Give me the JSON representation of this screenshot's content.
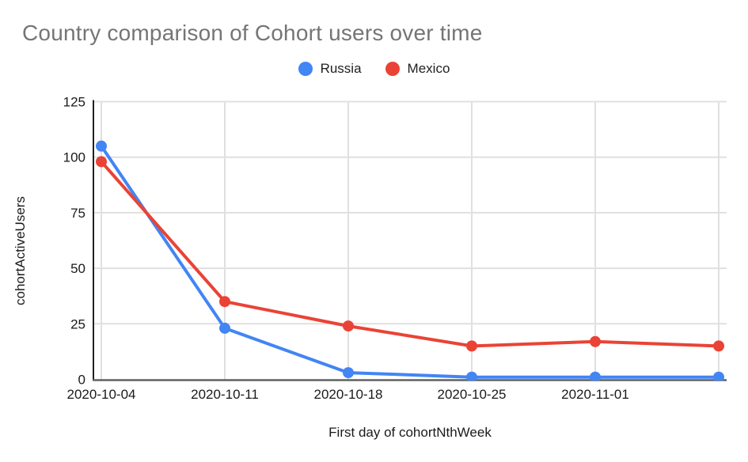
{
  "header": {
    "title": "Country comparison of Cohort users over time"
  },
  "legend": {
    "items": [
      {
        "label": "Russia",
        "color": "#4285F4"
      },
      {
        "label": "Mexico",
        "color": "#EA4335"
      }
    ]
  },
  "chart_data": {
    "type": "line",
    "title": "Country comparison of Cohort users over time",
    "xlabel": "First day of cohortNthWeek",
    "ylabel": "cohortActiveUsers",
    "categories": [
      "2020-10-04",
      "2020-10-11",
      "2020-10-18",
      "2020-10-25",
      "2020-11-01",
      ""
    ],
    "series": [
      {
        "name": "Russia",
        "color": "#4285F4",
        "values": [
          105,
          23,
          3,
          1,
          1,
          1
        ]
      },
      {
        "name": "Mexico",
        "color": "#EA4335",
        "values": [
          98,
          35,
          24,
          15,
          17,
          15
        ]
      }
    ],
    "ylim": [
      0,
      125
    ],
    "y_ticks": [
      0,
      25,
      50,
      75,
      100,
      125
    ],
    "grid": true,
    "legend_position": "top",
    "colors": {
      "grid": "#e0e0e0",
      "axis_y": "#212121",
      "axis_x": "#616161",
      "tick_text": "#1a1a1a",
      "title": "#757575"
    }
  }
}
